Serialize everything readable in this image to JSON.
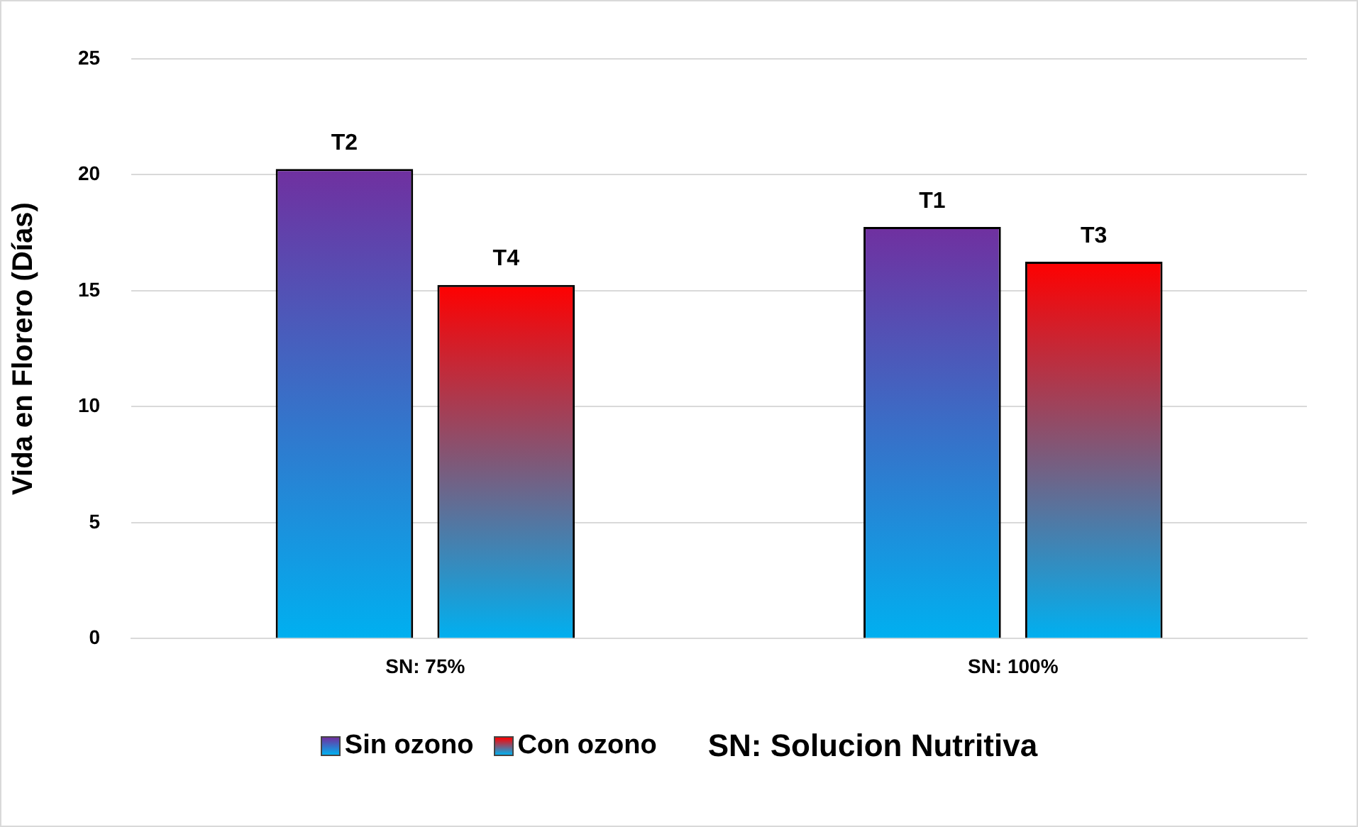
{
  "chart_data": {
    "type": "bar",
    "ylabel": "Vida en Florero (Días)",
    "categories": [
      "SN: 75%",
      "SN: 100%"
    ],
    "series": [
      {
        "name": "Sin ozono",
        "color": "#7030a0",
        "values": [
          20.25,
          17.75
        ],
        "value_labels": [
          "T2",
          "T1"
        ]
      },
      {
        "name": "Con ozono",
        "color": "#ff0000",
        "values": [
          15.25,
          16.25
        ],
        "value_labels": [
          "T4",
          "T3"
        ]
      }
    ],
    "ylim": [
      0,
      25
    ],
    "yticks": [
      0,
      5,
      10,
      15,
      20,
      25
    ],
    "grid": "y",
    "legend": "bottom",
    "annotations": [
      "SN: Solucion Nutritiva"
    ]
  }
}
